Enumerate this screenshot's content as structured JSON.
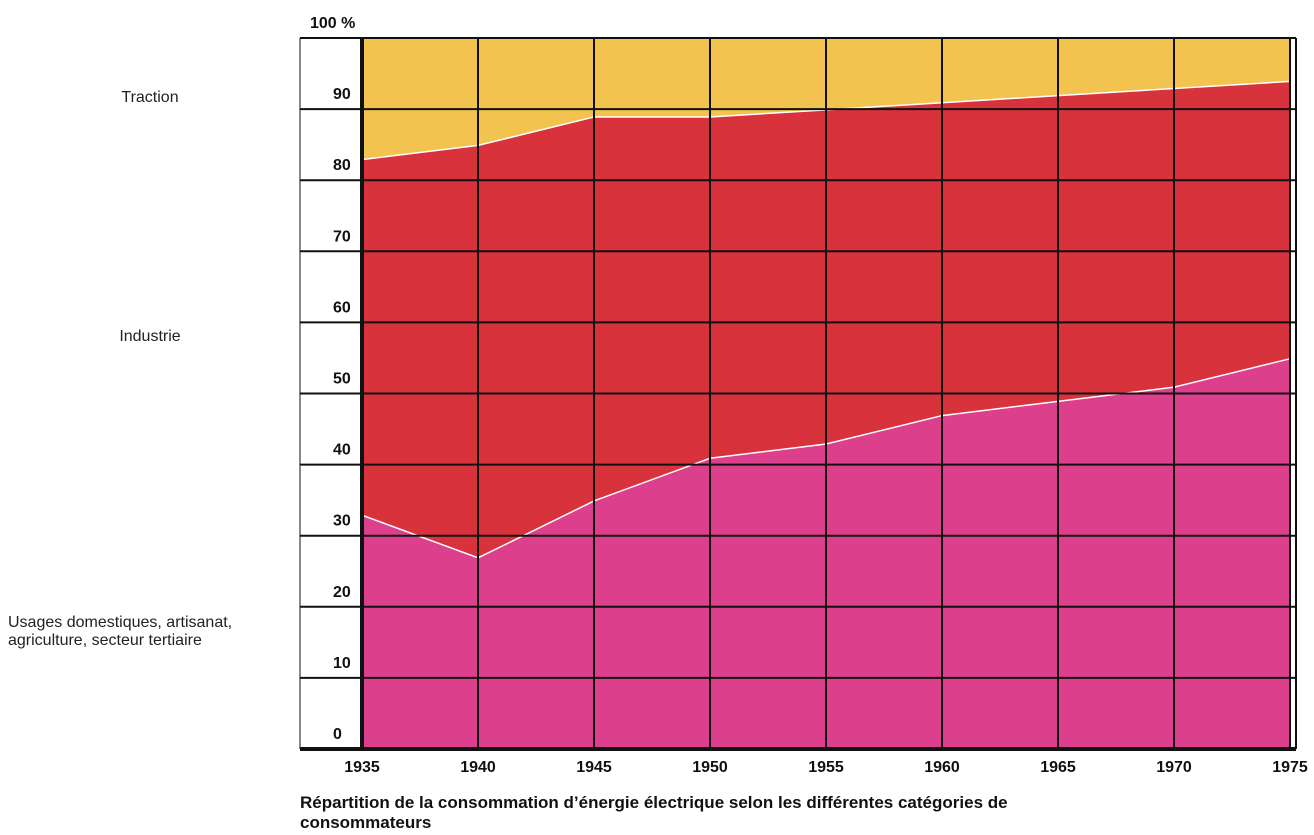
{
  "chart_data": {
    "type": "stacked_area",
    "title": "Répartition de la consommation d’énergie électrique selon les différentes catégories de consommateurs",
    "x": [
      1935,
      1940,
      1945,
      1950,
      1955,
      1960,
      1965,
      1970,
      1975
    ],
    "xlim": [
      1935,
      1975
    ],
    "xticks": [
      1935,
      1940,
      1945,
      1950,
      1955,
      1960,
      1965,
      1970,
      1975
    ],
    "ylim": [
      0,
      100
    ],
    "yticks": [
      0,
      10,
      20,
      30,
      40,
      50,
      60,
      70,
      80,
      90,
      {
        "value": 100,
        "label": "100 %"
      }
    ],
    "grid": true,
    "series": [
      {
        "name": "Usages domestiques, artisanat, agriculture, secteur tertiaire",
        "color": "#dc3f8c",
        "values": [
          33,
          27,
          35,
          41,
          43,
          47,
          49,
          51,
          55
        ]
      },
      {
        "name": "Industrie",
        "color": "#d8323c",
        "values": [
          50,
          58,
          54,
          48,
          47,
          44,
          43,
          42,
          39
        ]
      },
      {
        "name": "Traction",
        "color": "#f3c34f",
        "values": [
          17,
          15,
          11,
          11,
          10,
          9,
          8,
          7,
          6
        ]
      }
    ]
  }
}
